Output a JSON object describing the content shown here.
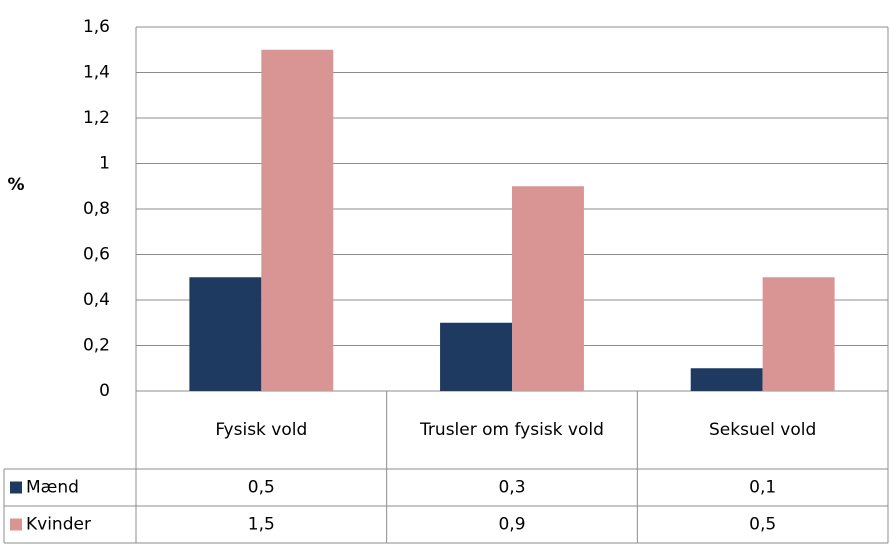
{
  "chart_data": {
    "type": "bar",
    "y_label": "%",
    "categories": [
      "Fysisk vold",
      "Trusler om fysisk vold",
      "Seksuel vold"
    ],
    "series": [
      {
        "name": "Mænd",
        "color": "#1f3a60",
        "values": [
          0.5,
          0.3,
          0.1
        ],
        "value_labels": [
          "0,5",
          "0,3",
          "0,1"
        ]
      },
      {
        "name": "Kvinder",
        "color": "#d99594",
        "values": [
          1.5,
          0.9,
          0.5
        ],
        "value_labels": [
          "1,5",
          "0,9",
          "0,5"
        ]
      }
    ],
    "ylim": [
      0,
      1.6
    ],
    "yticks": [
      0,
      {
        "value": 0.2,
        "label": "0,2"
      },
      {
        "value": 0.4,
        "label": "0,4"
      },
      {
        "value": 0.6,
        "label": "0,6"
      },
      {
        "value": 0.8,
        "label": "0,8"
      },
      1,
      {
        "value": 1.2,
        "label": "1,2"
      },
      {
        "value": 1.4,
        "label": "1,4"
      },
      {
        "value": 1.6,
        "label": "1,6"
      }
    ],
    "grid": true,
    "legend": "table"
  }
}
